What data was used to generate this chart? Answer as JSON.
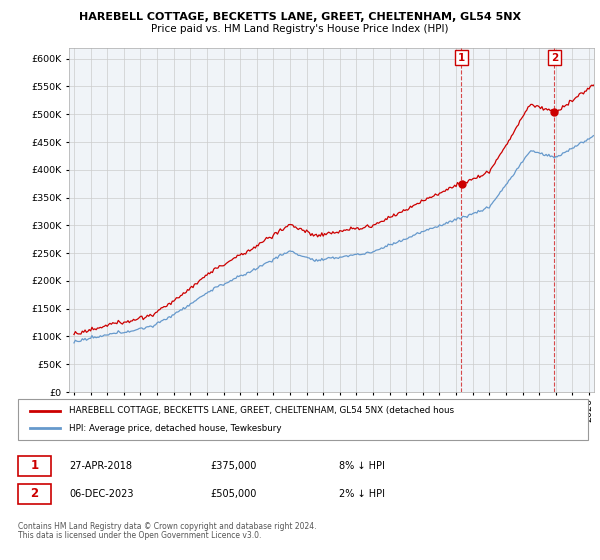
{
  "title1": "HAREBELL COTTAGE, BECKETTS LANE, GREET, CHELTENHAM, GL54 5NX",
  "title2": "Price paid vs. HM Land Registry's House Price Index (HPI)",
  "legend_red": "HAREBELL COTTAGE, BECKETTS LANE, GREET, CHELTENHAM, GL54 5NX (detached hous",
  "legend_blue": "HPI: Average price, detached house, Tewkesbury",
  "sale1_date": "27-APR-2018",
  "sale1_price": "£375,000",
  "sale1_hpi": "8% ↓ HPI",
  "sale2_date": "06-DEC-2023",
  "sale2_price": "£505,000",
  "sale2_hpi": "2% ↓ HPI",
  "footnote1": "Contains HM Land Registry data © Crown copyright and database right 2024.",
  "footnote2": "This data is licensed under the Open Government Licence v3.0.",
  "ylim": [
    0,
    620000
  ],
  "yticks": [
    0,
    50000,
    100000,
    150000,
    200000,
    250000,
    300000,
    350000,
    400000,
    450000,
    500000,
    550000,
    600000
  ],
  "red_color": "#cc0000",
  "blue_color": "#6699cc",
  "fill_color": "#ddeeff",
  "bg_color": "#ffffff",
  "plot_bg": "#f0f4f8",
  "grid_color": "#cccccc",
  "sale1_year": 2018.32,
  "sale2_year": 2023.92,
  "start_year": 1995,
  "end_year": 2026
}
